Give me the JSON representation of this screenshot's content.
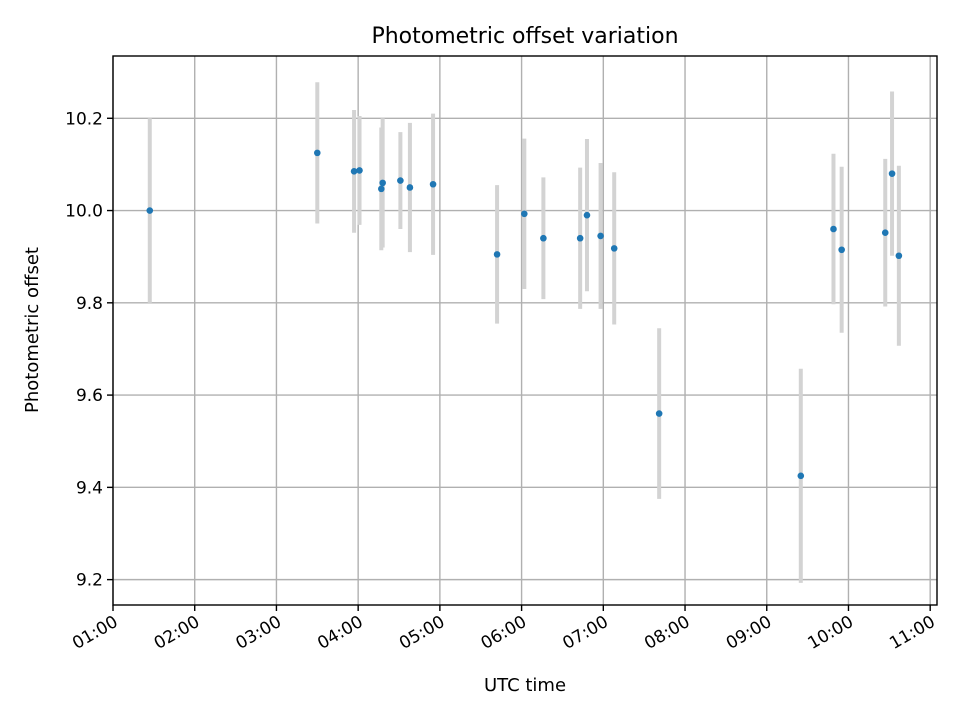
{
  "chart_data": {
    "type": "scatter",
    "title": "Photometric offset variation",
    "xlabel": "UTC time",
    "ylabel": "Photometric offset",
    "xlim": [
      "01:00",
      "11:05"
    ],
    "ylim": [
      9.145,
      10.335
    ],
    "grid": true,
    "x_ticks": [
      "01:00",
      "02:00",
      "03:00",
      "04:00",
      "05:00",
      "06:00",
      "07:00",
      "08:00",
      "09:00",
      "10:00",
      "11:00"
    ],
    "y_ticks": [
      9.2,
      9.4,
      9.6,
      9.8,
      10.0,
      10.2
    ],
    "point_color": "#1f77b4",
    "errorbar_color": "#d3d3d3",
    "series": [
      {
        "points": [
          {
            "x": "01:27",
            "y": 10.0,
            "err": 0.2
          },
          {
            "x": "03:30",
            "y": 10.125,
            "err": 0.153
          },
          {
            "x": "03:57",
            "y": 10.085,
            "err": 0.133
          },
          {
            "x": "04:01",
            "y": 10.087,
            "err": 0.118
          },
          {
            "x": "04:17",
            "y": 10.047,
            "err": 0.133
          },
          {
            "x": "04:18",
            "y": 10.06,
            "err": 0.14
          },
          {
            "x": "04:31",
            "y": 10.065,
            "err": 0.105
          },
          {
            "x": "04:38",
            "y": 10.05,
            "err": 0.14
          },
          {
            "x": "04:55",
            "y": 10.057,
            "err": 0.153
          },
          {
            "x": "05:42",
            "y": 9.905,
            "err": 0.15
          },
          {
            "x": "06:02",
            "y": 9.993,
            "err": 0.163
          },
          {
            "x": "06:16",
            "y": 9.94,
            "err": 0.132
          },
          {
            "x": "06:43",
            "y": 9.94,
            "err": 0.153
          },
          {
            "x": "06:48",
            "y": 9.99,
            "err": 0.165
          },
          {
            "x": "06:58",
            "y": 9.945,
            "err": 0.158
          },
          {
            "x": "07:08",
            "y": 9.918,
            "err": 0.165
          },
          {
            "x": "07:41",
            "y": 9.56,
            "err": 0.185
          },
          {
            "x": "09:25",
            "y": 9.425,
            "err": 0.232
          },
          {
            "x": "09:49",
            "y": 9.96,
            "err": 0.163
          },
          {
            "x": "09:55",
            "y": 9.915,
            "err": 0.18
          },
          {
            "x": "10:27",
            "y": 9.952,
            "err": 0.16
          },
          {
            "x": "10:32",
            "y": 10.08,
            "err": 0.178
          },
          {
            "x": "10:37",
            "y": 9.902,
            "err": 0.195
          }
        ]
      }
    ]
  }
}
